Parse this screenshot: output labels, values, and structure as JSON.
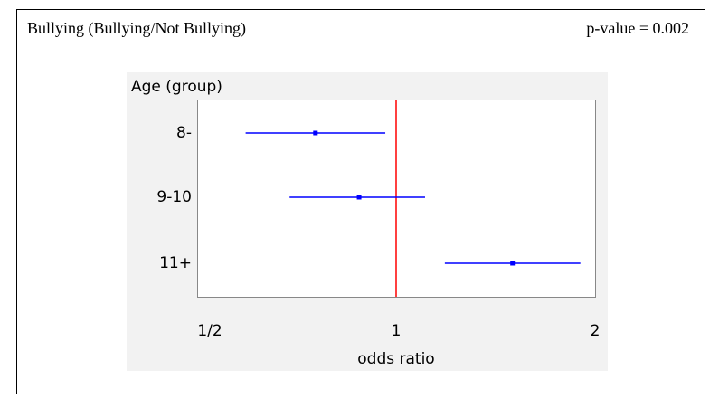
{
  "header": {
    "title": "Bullying (Bullying/Not Bullying)",
    "p_value": "p-value = 0.002"
  },
  "chart_data": {
    "type": "forest",
    "title": "Age (group)",
    "x_label": "odds ratio",
    "categories": [
      "8-",
      "9-10",
      "11+"
    ],
    "estimate": [
      0.755,
      0.879,
      1.5
    ],
    "lower": [
      0.592,
      0.69,
      1.185
    ],
    "upper": [
      0.963,
      1.106,
      1.9
    ],
    "color": "#0000ff",
    "reference_color": "#ff0000",
    "reference": 1,
    "log_scale": true,
    "xlim": [
      0.5,
      2
    ],
    "xticks": [
      {
        "value": 0.5,
        "label": "1/2"
      },
      1,
      2
    ]
  }
}
